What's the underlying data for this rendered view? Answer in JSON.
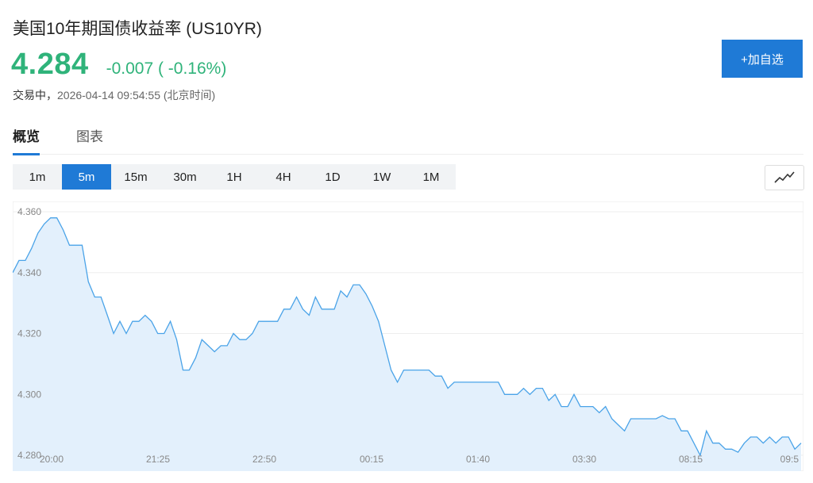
{
  "header": {
    "title": "美国10年期国债收益率 (US10YR)",
    "price": "4.284",
    "change": "-0.007 ( -0.16%)",
    "status": "交易中，",
    "timestamp": "2026-04-14 09:54:55",
    "timezone": "(北京时间)",
    "add_button": "+加自选"
  },
  "tabs": [
    {
      "label": "概览",
      "active": true
    },
    {
      "label": "图表",
      "active": false
    }
  ],
  "timeframes": [
    "1m",
    "5m",
    "15m",
    "30m",
    "1H",
    "4H",
    "1D",
    "1W",
    "1M"
  ],
  "selected_timeframe": "5m",
  "chart_type_icon": "line-chart-icon",
  "colors": {
    "up_green": "#2fb37a",
    "accent_blue": "#1f7ad6",
    "line": "#4aa3e8",
    "fill": "#e3f0fc"
  },
  "chart_data": {
    "type": "area",
    "title": "",
    "xlabel": "",
    "ylabel": "",
    "ylim": [
      4.28,
      4.362
    ],
    "yticks": [
      "4.360",
      "4.340",
      "4.320",
      "4.300",
      "4.280"
    ],
    "ytick_values": [
      4.36,
      4.34,
      4.32,
      4.3,
      4.28
    ],
    "xticks": [
      "20:00",
      "21:25",
      "22:50",
      "00:15",
      "01:40",
      "03:30",
      "08:15",
      "09:5"
    ],
    "grid": true,
    "series": [
      {
        "values": [
          4.34,
          4.344,
          4.344,
          4.348,
          4.353,
          4.356,
          4.358,
          4.358,
          4.354,
          4.349,
          4.349,
          4.349,
          4.337,
          4.332,
          4.332,
          4.326,
          4.32,
          4.324,
          4.32,
          4.324,
          4.324,
          4.326,
          4.324,
          4.32,
          4.32,
          4.324,
          4.318,
          4.308,
          4.308,
          4.312,
          4.318,
          4.316,
          4.314,
          4.316,
          4.316,
          4.32,
          4.318,
          4.318,
          4.32,
          4.324,
          4.324,
          4.324,
          4.324,
          4.328,
          4.328,
          4.332,
          4.328,
          4.326,
          4.332,
          4.328,
          4.328,
          4.328,
          4.334,
          4.332,
          4.336,
          4.336,
          4.333,
          4.329,
          4.324,
          4.316,
          4.308,
          4.304,
          4.308,
          4.308,
          4.308,
          4.308,
          4.308,
          4.306,
          4.306,
          4.302,
          4.304,
          4.304,
          4.304,
          4.304,
          4.304,
          4.304,
          4.304,
          4.304,
          4.3,
          4.3,
          4.3,
          4.302,
          4.3,
          4.302,
          4.302,
          4.298,
          4.3,
          4.296,
          4.296,
          4.3,
          4.296,
          4.296,
          4.296,
          4.294,
          4.296,
          4.292,
          4.29,
          4.288,
          4.292,
          4.292,
          4.292,
          4.292,
          4.292,
          4.293,
          4.292,
          4.292,
          4.288,
          4.288,
          4.284,
          4.28,
          4.288,
          4.284,
          4.284,
          4.282,
          4.282,
          4.281,
          4.284,
          4.286,
          4.286,
          4.284,
          4.286,
          4.284,
          4.286,
          4.286,
          4.282,
          4.284
        ]
      }
    ]
  }
}
